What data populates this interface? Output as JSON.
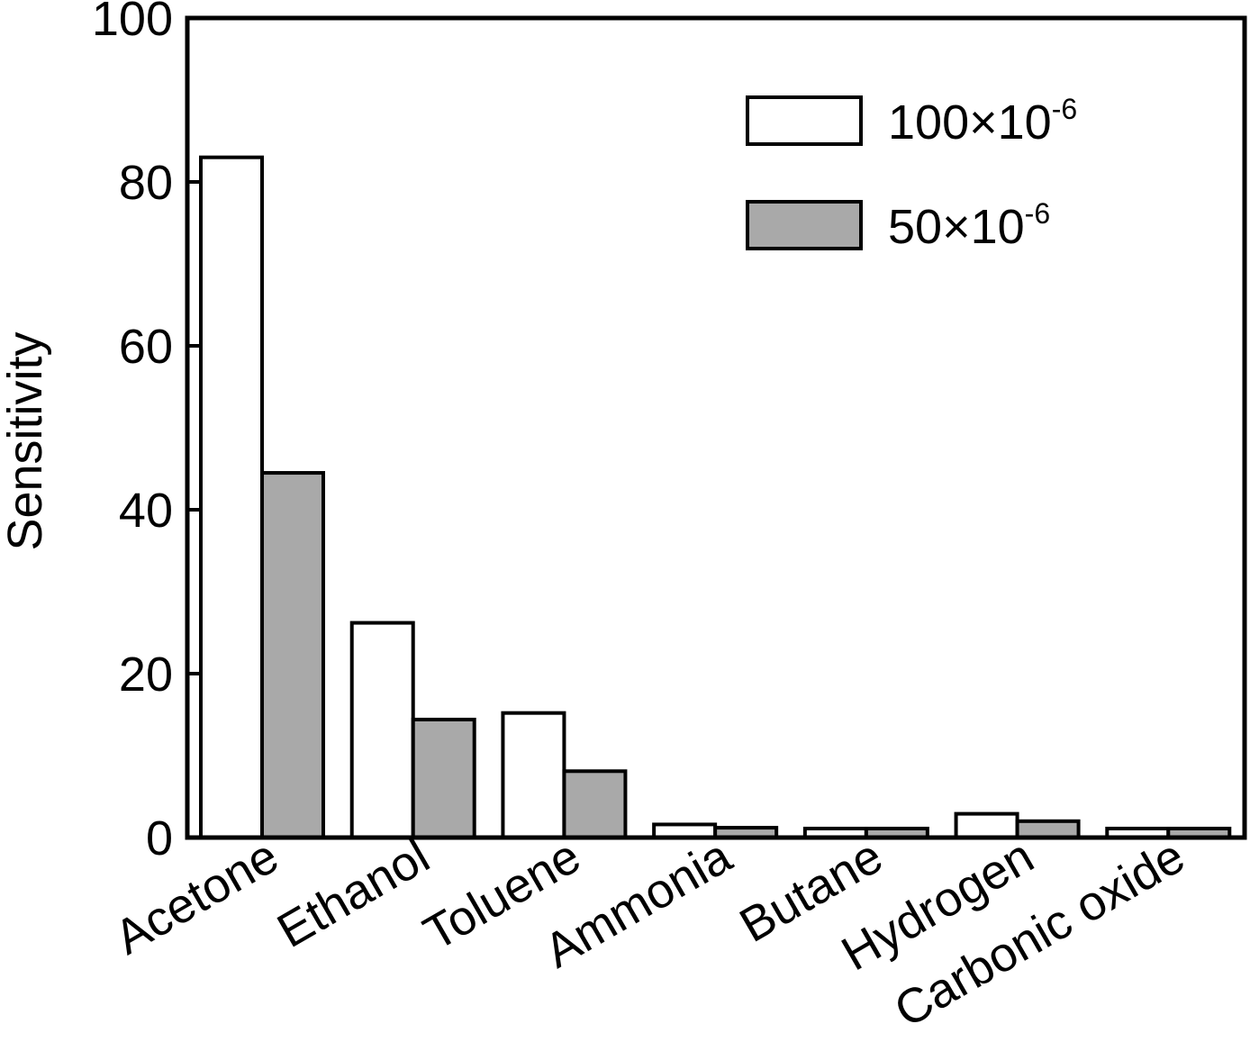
{
  "chart_data": {
    "type": "bar",
    "title": "",
    "xlabel": "",
    "ylabel": "Sensitivity",
    "ylim": [
      0,
      100
    ],
    "yticks": [
      0,
      20,
      40,
      60,
      80,
      100
    ],
    "grid": false,
    "legend_position": "top-right",
    "categories": [
      "Acetone",
      "Ethanol",
      "Toluene",
      "Ammonia",
      "Butane",
      "Hydrogen",
      "Carbonic oxide"
    ],
    "series": [
      {
        "name": "100×10-6",
        "legend_base": "100×10",
        "legend_exp": "-6",
        "color": "#ffffff",
        "values": [
          83.0,
          26.2,
          15.2,
          1.6,
          1.1,
          2.9,
          1.1
        ]
      },
      {
        "name": "50×10-6",
        "legend_base": "50×10",
        "legend_exp": "-6",
        "color": "#a9a9a9",
        "values": [
          44.5,
          14.4,
          8.1,
          1.2,
          1.1,
          2.0,
          1.1
        ]
      }
    ]
  }
}
